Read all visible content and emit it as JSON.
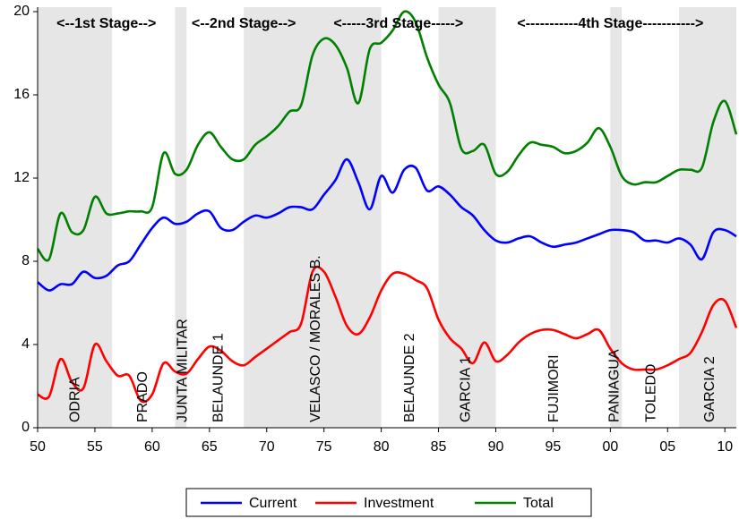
{
  "chart_data": {
    "type": "line",
    "x": [
      1950,
      1951,
      1952,
      1953,
      1954,
      1955,
      1956,
      1957,
      1958,
      1959,
      1960,
      1961,
      1962,
      1963,
      1964,
      1965,
      1966,
      1967,
      1968,
      1969,
      1970,
      1971,
      1972,
      1973,
      1974,
      1975,
      1976,
      1977,
      1978,
      1979,
      1980,
      1981,
      1982,
      1983,
      1984,
      1985,
      1986,
      1987,
      1988,
      1989,
      1990,
      1991,
      1992,
      1993,
      1994,
      1995,
      1996,
      1997,
      1998,
      1999,
      2000,
      2001,
      2002,
      2003,
      2004,
      2005,
      2006,
      2007,
      2008,
      2009,
      2010,
      2011
    ],
    "series": [
      {
        "name": "Current",
        "color": "#0000ff",
        "values": [
          7.0,
          6.6,
          6.9,
          6.9,
          7.5,
          7.2,
          7.3,
          7.8,
          8.0,
          8.8,
          9.6,
          10.1,
          9.8,
          9.9,
          10.3,
          10.4,
          9.6,
          9.5,
          9.9,
          10.2,
          10.1,
          10.3,
          10.6,
          10.6,
          10.5,
          11.2,
          11.9,
          12.9,
          11.8,
          10.5,
          12.1,
          11.3,
          12.4,
          12.5,
          11.4,
          11.6,
          11.2,
          10.6,
          10.2,
          9.5,
          9.0,
          8.9,
          9.1,
          9.2,
          8.9,
          8.7,
          8.8,
          8.9,
          9.1,
          9.3,
          9.5,
          9.5,
          9.4,
          9.0,
          9.0,
          8.9,
          9.1,
          8.8,
          8.1,
          9.4,
          9.5,
          9.2
        ]
      },
      {
        "name": "Investment",
        "color": "#ff0000",
        "values": [
          1.6,
          1.5,
          3.3,
          2.2,
          1.9,
          4.0,
          3.2,
          2.5,
          2.5,
          1.3,
          1.6,
          3.1,
          2.7,
          2.6,
          3.3,
          3.9,
          3.7,
          3.2,
          3.0,
          3.4,
          3.8,
          4.2,
          4.6,
          5.0,
          7.5,
          7.5,
          6.3,
          4.9,
          4.5,
          5.3,
          6.6,
          7.4,
          7.4,
          7.1,
          6.7,
          5.2,
          4.3,
          3.8,
          3.1,
          4.1,
          3.2,
          3.5,
          4.1,
          4.5,
          4.7,
          4.7,
          4.5,
          4.3,
          4.5,
          4.7,
          3.8,
          3.1,
          2.8,
          2.8,
          2.8,
          3.0,
          3.3,
          3.6,
          4.6,
          5.9,
          6.1,
          4.8
        ]
      },
      {
        "name": "Total",
        "color": "#008000",
        "values": [
          8.6,
          8.1,
          10.3,
          9.4,
          9.5,
          11.1,
          10.3,
          10.3,
          10.4,
          10.4,
          10.6,
          13.2,
          12.2,
          12.4,
          13.6,
          14.2,
          13.5,
          12.9,
          12.9,
          13.6,
          14.0,
          14.5,
          15.2,
          15.5,
          17.9,
          18.7,
          18.4,
          17.3,
          15.6,
          18.2,
          18.5,
          19.1,
          20.0,
          19.5,
          17.8,
          16.5,
          15.6,
          13.4,
          13.3,
          13.6,
          12.2,
          12.3,
          13.1,
          13.7,
          13.6,
          13.5,
          13.2,
          13.3,
          13.7,
          14.4,
          13.5,
          12.1,
          11.7,
          11.8,
          11.8,
          12.1,
          12.4,
          12.4,
          12.5,
          14.7,
          15.7,
          14.1
        ]
      }
    ],
    "xlim": [
      1950,
      2011
    ],
    "xticks": [
      {
        "value": 1950,
        "label": "50"
      },
      {
        "value": 1955,
        "label": "55"
      },
      {
        "value": 1960,
        "label": "60"
      },
      {
        "value": 1965,
        "label": "65"
      },
      {
        "value": 1970,
        "label": "70"
      },
      {
        "value": 1975,
        "label": "75"
      },
      {
        "value": 1980,
        "label": "80"
      },
      {
        "value": 1985,
        "label": "85"
      },
      {
        "value": 1990,
        "label": "90"
      },
      {
        "value": 1995,
        "label": "95"
      },
      {
        "value": 2000,
        "label": "00"
      },
      {
        "value": 2005,
        "label": "05"
      },
      {
        "value": 2010,
        "label": "10"
      }
    ],
    "ylim": [
      0,
      20
    ],
    "yticks": [
      0,
      4,
      8,
      12,
      16,
      20
    ],
    "shaded_periods": [
      [
        1950,
        1956.5
      ],
      [
        1962,
        1963
      ],
      [
        1968,
        1980
      ],
      [
        1985,
        1990
      ],
      [
        2000,
        2001
      ],
      [
        2006,
        2011
      ]
    ],
    "shade_color": "#e6e6e6",
    "stages": [
      {
        "label": "<--1st Stage-->",
        "start": 1950,
        "end": 1962
      },
      {
        "label": "<--2nd Stage-->",
        "start": 1962,
        "end": 1974
      },
      {
        "label": "<-----3rd Stage----->",
        "start": 1974,
        "end": 1989
      },
      {
        "label": "<-----------4th Stage----------->",
        "start": 1989,
        "end": 2011
      }
    ],
    "annotations": [
      {
        "text": "ODRIA",
        "x": 1953.3
      },
      {
        "text": "PRADO",
        "x": 1959.2
      },
      {
        "text": "JUNTA MILITAR",
        "x": 1962.7
      },
      {
        "text": "BELAUNDE 1",
        "x": 1965.8
      },
      {
        "text": "VELASCO / MORALES B.",
        "x": 1974.3
      },
      {
        "text": "BELAUNDE 2",
        "x": 1982.5
      },
      {
        "text": "GARCIA 1",
        "x": 1987.4
      },
      {
        "text": "FUJIMORI",
        "x": 1995.1
      },
      {
        "text": "PANIAGUA",
        "x": 2000.4
      },
      {
        "text": "TOLEDO",
        "x": 2003.6
      },
      {
        "text": "GARCIA 2",
        "x": 2008.7
      }
    ]
  }
}
